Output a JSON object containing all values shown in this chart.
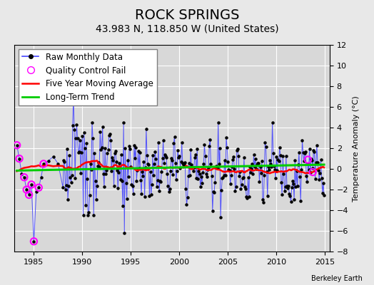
{
  "title": "ROCK SPRINGS",
  "subtitle": "43.983 N, 118.850 W (United States)",
  "ylabel": "Temperature Anomaly (°C)",
  "credit": "Berkeley Earth",
  "xlim": [
    1983.0,
    2015.5
  ],
  "ylim": [
    -8,
    12
  ],
  "yticks": [
    -8,
    -6,
    -4,
    -2,
    0,
    2,
    4,
    6,
    8,
    10,
    12
  ],
  "xticks": [
    1985,
    1990,
    1995,
    2000,
    2005,
    2010,
    2015
  ],
  "bg_color": "#e8e8e8",
  "plot_bg_color": "#d8d8d8",
  "grid_color": "#ffffff",
  "raw_line_color": "#4444ff",
  "raw_marker_color": "#000000",
  "qc_fail_color": "#ff00ff",
  "moving_avg_color": "#ff0000",
  "trend_color": "#00cc00",
  "legend_fontsize": 8.5,
  "title_fontsize": 14,
  "subtitle_fontsize": 10
}
